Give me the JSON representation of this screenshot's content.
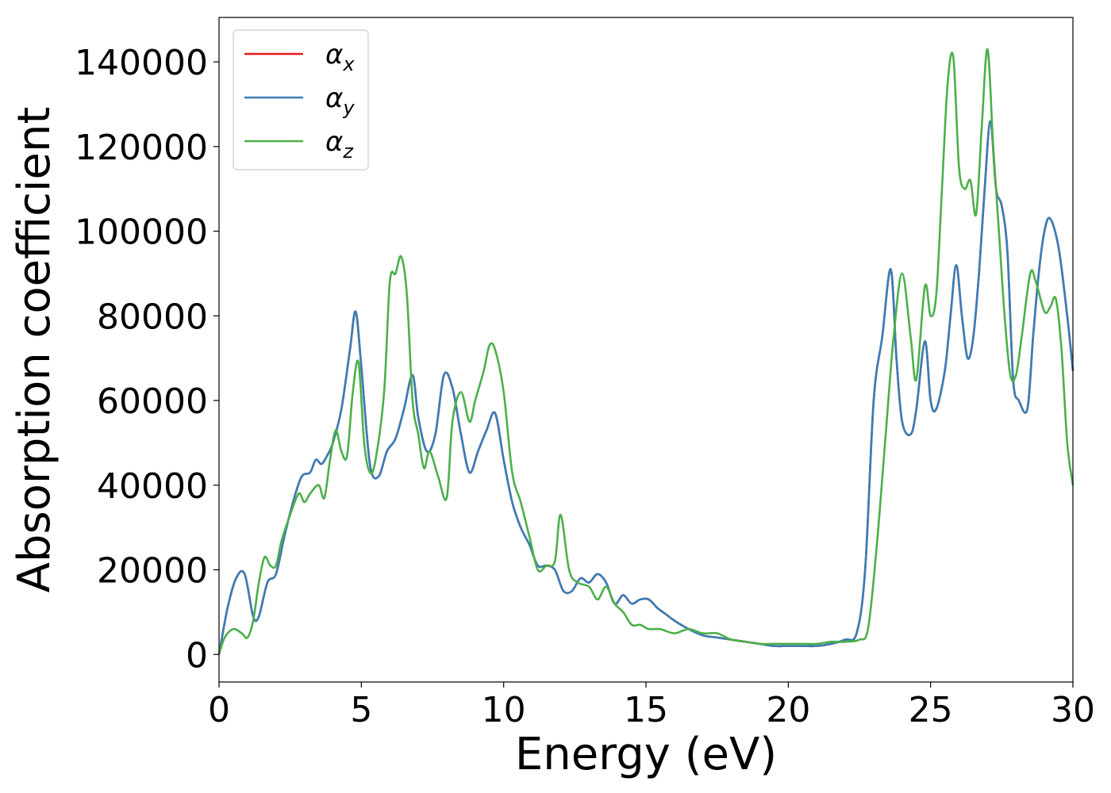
{
  "chart_data": {
    "type": "line",
    "title": "",
    "xlabel": "Energy (eV)",
    "ylabel": "Absorption coefficient",
    "xlim": [
      0,
      30
    ],
    "ylim": [
      -6500,
      150500
    ],
    "x_ticks": [
      0,
      5,
      10,
      15,
      20,
      25,
      30
    ],
    "y_ticks": [
      0,
      20000,
      40000,
      60000,
      80000,
      100000,
      120000,
      140000
    ],
    "grid": false,
    "legend_position": "top-left",
    "series": [
      {
        "name": "αx",
        "legend_base": "α",
        "legend_sub": "x",
        "color": "#e41a1c",
        "x": [
          0,
          0.3,
          0.6,
          0.9,
          1.2,
          1.4,
          1.7,
          2.0,
          2.3,
          2.6,
          2.9,
          3.2,
          3.4,
          3.6,
          3.8,
          4.0,
          4.3,
          4.6,
          4.8,
          5.0,
          5.3,
          5.6,
          5.9,
          6.2,
          6.5,
          6.8,
          7.0,
          7.3,
          7.6,
          7.9,
          8.2,
          8.5,
          8.8,
          9.1,
          9.4,
          9.7,
          10.0,
          10.3,
          10.6,
          10.9,
          11.2,
          11.5,
          11.8,
          12.1,
          12.4,
          12.7,
          13.0,
          13.3,
          13.6,
          13.9,
          14.2,
          14.5,
          14.8,
          15.1,
          15.4,
          15.7,
          16.0,
          16.5,
          17.0,
          17.5,
          18.0,
          18.5,
          19.0,
          19.5,
          20.0,
          20.5,
          21.0,
          21.5,
          22.0,
          22.4,
          22.7,
          23.0,
          23.3,
          23.6,
          23.8,
          24.0,
          24.3,
          24.5,
          24.8,
          25.0,
          25.2,
          25.5,
          25.7,
          25.9,
          26.1,
          26.3,
          26.5,
          26.7,
          26.9,
          27.1,
          27.3,
          27.5,
          27.7,
          27.9,
          28.1,
          28.4,
          28.6,
          28.8,
          29.0,
          29.2,
          29.5,
          29.8,
          30.0
        ],
        "values": [
          0,
          11000,
          18000,
          19000,
          9000,
          9000,
          17000,
          19000,
          28000,
          36000,
          42000,
          43000,
          46000,
          45000,
          47000,
          50000,
          58000,
          72000,
          81000,
          68000,
          45000,
          42000,
          48000,
          51000,
          58000,
          66000,
          56000,
          48000,
          52000,
          66000,
          63000,
          52000,
          43000,
          48000,
          53000,
          57000,
          46000,
          36000,
          30000,
          26000,
          21000,
          21000,
          20000,
          15000,
          15000,
          18000,
          17000,
          19000,
          17000,
          12000,
          14000,
          12000,
          13000,
          13000,
          11000,
          9500,
          8000,
          6000,
          4500,
          4000,
          3500,
          3000,
          2500,
          2000,
          2000,
          2000,
          2000,
          2500,
          3500,
          5000,
          20000,
          60000,
          75000,
          91000,
          70000,
          55000,
          52000,
          58000,
          74000,
          60000,
          58000,
          67000,
          80000,
          92000,
          80000,
          70000,
          75000,
          90000,
          110000,
          126000,
          110000,
          106000,
          95000,
          65000,
          60000,
          58000,
          75000,
          90000,
          100000,
          103000,
          96000,
          80000,
          67000
        ]
      },
      {
        "name": "αy",
        "legend_base": "α",
        "legend_sub": "y",
        "color": "#377eb8",
        "x": [
          0,
          0.3,
          0.6,
          0.9,
          1.2,
          1.4,
          1.7,
          2.0,
          2.3,
          2.6,
          2.9,
          3.2,
          3.4,
          3.6,
          3.8,
          4.0,
          4.3,
          4.6,
          4.8,
          5.0,
          5.3,
          5.6,
          5.9,
          6.2,
          6.5,
          6.8,
          7.0,
          7.3,
          7.6,
          7.9,
          8.2,
          8.5,
          8.8,
          9.1,
          9.4,
          9.7,
          10.0,
          10.3,
          10.6,
          10.9,
          11.2,
          11.5,
          11.8,
          12.1,
          12.4,
          12.7,
          13.0,
          13.3,
          13.6,
          13.9,
          14.2,
          14.5,
          14.8,
          15.1,
          15.4,
          15.7,
          16.0,
          16.5,
          17.0,
          17.5,
          18.0,
          18.5,
          19.0,
          19.5,
          20.0,
          20.5,
          21.0,
          21.5,
          22.0,
          22.4,
          22.7,
          23.0,
          23.3,
          23.6,
          23.8,
          24.0,
          24.3,
          24.5,
          24.8,
          25.0,
          25.2,
          25.5,
          25.7,
          25.9,
          26.1,
          26.3,
          26.5,
          26.7,
          26.9,
          27.1,
          27.3,
          27.5,
          27.7,
          27.9,
          28.1,
          28.4,
          28.6,
          28.8,
          29.0,
          29.2,
          29.5,
          29.8,
          30.0
        ],
        "values": [
          0,
          11000,
          18000,
          19000,
          9000,
          9000,
          17000,
          19000,
          28000,
          36000,
          42000,
          43000,
          46000,
          45000,
          47000,
          50000,
          58000,
          72000,
          81000,
          68000,
          45000,
          42000,
          48000,
          51000,
          58000,
          66000,
          56000,
          48000,
          52000,
          66000,
          63000,
          52000,
          43000,
          48000,
          53000,
          57000,
          46000,
          36000,
          30000,
          26000,
          21000,
          21000,
          20000,
          15000,
          15000,
          18000,
          17000,
          19000,
          17000,
          12000,
          14000,
          12000,
          13000,
          13000,
          11000,
          9500,
          8000,
          6000,
          4500,
          4000,
          3500,
          3000,
          2500,
          2000,
          2000,
          2000,
          2000,
          2500,
          3500,
          5000,
          20000,
          60000,
          75000,
          91000,
          70000,
          55000,
          52000,
          58000,
          74000,
          60000,
          58000,
          67000,
          80000,
          92000,
          80000,
          70000,
          75000,
          90000,
          110000,
          126000,
          110000,
          106000,
          95000,
          65000,
          60000,
          58000,
          75000,
          90000,
          100000,
          103000,
          96000,
          80000,
          67000
        ]
      },
      {
        "name": "αz",
        "legend_base": "α",
        "legend_sub": "z",
        "color": "#4daf4a",
        "x": [
          0,
          0.2,
          0.5,
          0.8,
          1.0,
          1.2,
          1.4,
          1.6,
          1.8,
          2.0,
          2.2,
          2.5,
          2.8,
          3.0,
          3.2,
          3.5,
          3.7,
          3.9,
          4.1,
          4.3,
          4.5,
          4.7,
          4.9,
          5.1,
          5.3,
          5.5,
          5.8,
          6.0,
          6.2,
          6.4,
          6.6,
          6.8,
          7.0,
          7.2,
          7.4,
          7.7,
          8.0,
          8.2,
          8.5,
          8.8,
          9.0,
          9.3,
          9.5,
          9.7,
          10.0,
          10.3,
          10.6,
          10.9,
          11.2,
          11.5,
          11.8,
          12.0,
          12.3,
          12.6,
          13.0,
          13.3,
          13.6,
          13.9,
          14.2,
          14.5,
          14.8,
          15.1,
          15.5,
          16.0,
          16.5,
          17.0,
          17.5,
          18.0,
          18.5,
          19.0,
          19.5,
          20.0,
          20.5,
          21.0,
          21.5,
          22.0,
          22.5,
          22.8,
          23.1,
          23.4,
          23.7,
          24.0,
          24.3,
          24.5,
          24.8,
          25.0,
          25.2,
          25.4,
          25.6,
          25.8,
          26.0,
          26.2,
          26.4,
          26.6,
          26.8,
          27.0,
          27.2,
          27.4,
          27.6,
          27.8,
          28.0,
          28.2,
          28.5,
          28.7,
          29.0,
          29.2,
          29.4,
          29.6,
          29.8,
          30.0
        ],
        "values": [
          0,
          4000,
          6000,
          5000,
          4000,
          8000,
          17000,
          23000,
          21000,
          21000,
          27000,
          33000,
          38000,
          36000,
          38000,
          40000,
          37000,
          46000,
          53000,
          48000,
          47000,
          62000,
          69000,
          50000,
          43000,
          46000,
          62000,
          88000,
          90000,
          94000,
          85000,
          60000,
          52000,
          44000,
          48000,
          42000,
          37000,
          55000,
          62000,
          55000,
          60000,
          67000,
          73000,
          72000,
          62000,
          43000,
          36000,
          28000,
          20000,
          21000,
          22000,
          33000,
          20000,
          17000,
          16000,
          13000,
          16000,
          12000,
          10000,
          7000,
          7000,
          6000,
          6000,
          5000,
          6000,
          5000,
          5000,
          3500,
          3000,
          2500,
          2500,
          2500,
          2500,
          2500,
          3000,
          3000,
          3500,
          6000,
          25000,
          50000,
          75000,
          90000,
          75000,
          65000,
          87000,
          80000,
          85000,
          110000,
          135000,
          141000,
          115000,
          110000,
          112000,
          104000,
          125000,
          143000,
          120000,
          100000,
          80000,
          66000,
          66000,
          75000,
          90000,
          88000,
          81000,
          82000,
          84000,
          72000,
          50000,
          40000
        ]
      }
    ]
  }
}
